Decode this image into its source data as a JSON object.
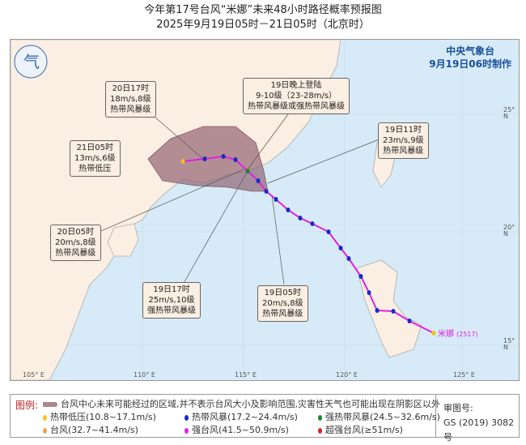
{
  "header": {
    "title": "今年第17号台风“米娜”未来48小时路径概率预报图",
    "subtitle": "2025年9月19日05时－21日05时（北京时）"
  },
  "agency": {
    "name": "中央气象台",
    "issued": "9月19日06时制作"
  },
  "map": {
    "lon_ticks": [
      "105° E",
      "110° E",
      "115° E",
      "120° E",
      "125° E"
    ],
    "lat_ticks": [
      "25° N",
      "20° N",
      "15° N"
    ],
    "typhoon_label": "米娜",
    "typhoon_code": "(2517)",
    "colors": {
      "sea": "#d6ebf7",
      "land": "#fbeee2",
      "cone": "#8b5a6a",
      "track": "#e020e0",
      "ts": "#1a2bc0",
      "td": "#f5c518",
      "sts": "#1a8a2a"
    },
    "callouts": [
      {
        "lines": [
          "20日17时",
          "18m/s,8级",
          "热带风暴级"
        ]
      },
      {
        "lines": [
          "19日晚上登陆",
          "9-10级（23-28m/s）",
          "热带风暴级或强热带风暴级"
        ]
      },
      {
        "lines": [
          "21日05时",
          "13m/s,6级",
          "热带低压"
        ]
      },
      {
        "lines": [
          "19日11时",
          "23m/s,9级",
          "热带风暴级"
        ]
      },
      {
        "lines": [
          "20日05时",
          "20m/s,8级",
          "热带风暴级"
        ]
      },
      {
        "lines": [
          "19日17时",
          "25m/s,10级",
          "强热带风暴级"
        ]
      },
      {
        "lines": [
          "19日05时",
          "20m/s,8级",
          "热带风暴级"
        ]
      }
    ]
  },
  "legend": {
    "title": "图例:",
    "cone_desc": "台风中心未来可能经过的区域,并不表示台风大小及影响范围,灾害性天气也可能出现在阴影区以外",
    "items": [
      {
        "label": "热带低压(10.8~17.1m/s)",
        "color": "#f5c518"
      },
      {
        "label": "热带风暴(17.2~24.4m/s)",
        "color": "#1a2bc0"
      },
      {
        "label": "强热带风暴(24.5~32.6m/s)",
        "color": "#1a8a2a"
      },
      {
        "label": "台风(32.7~41.4m/s)",
        "color": "#f0a050"
      },
      {
        "label": "强台风(41.5~50.9m/s)",
        "color": "#e020e0"
      },
      {
        "label": "超强台风(≥51m/s)",
        "color": "#e02020"
      }
    ],
    "review_label": "审图号:",
    "review_no": "GS (2019) 3082号"
  }
}
